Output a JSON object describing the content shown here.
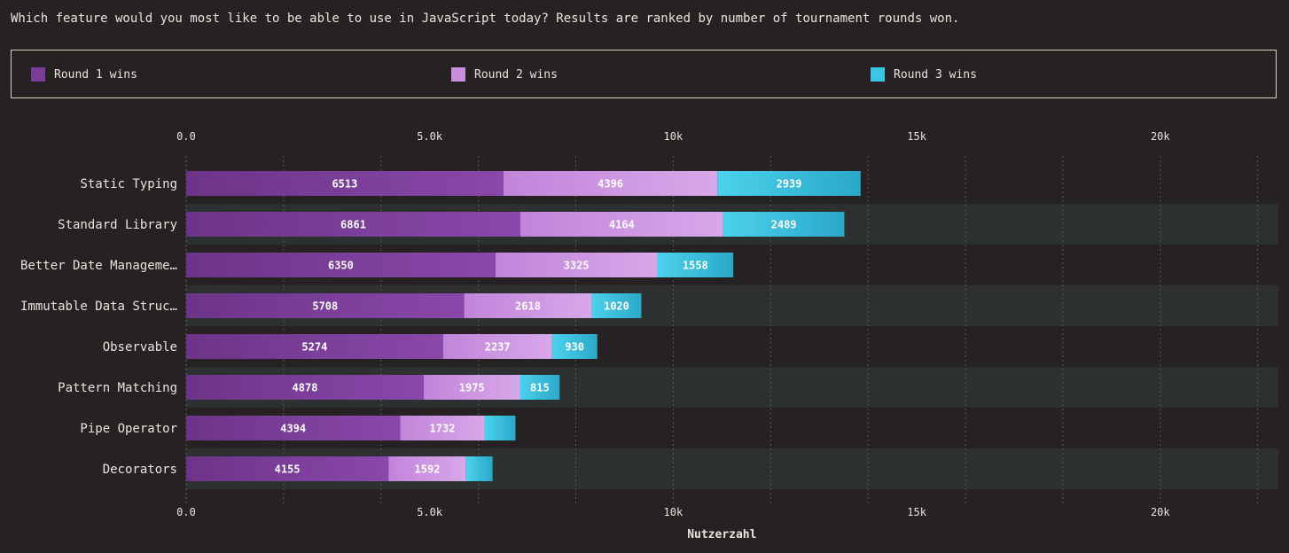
{
  "question": "Which feature would you most like to be able to use in JavaScript today? Results are ranked by number of tournament rounds won.",
  "chart_data": {
    "type": "bar",
    "orientation": "horizontal",
    "stacked": true,
    "categories": [
      "Static Typing",
      "Standard Library",
      "Better Date Manageme…",
      "Immutable Data Struc…",
      "Observable",
      "Pattern Matching",
      "Pipe Operator",
      "Decorators"
    ],
    "series": [
      {
        "name": "Round 1 wins",
        "color": "#7a3d98",
        "values": [
          6513,
          6861,
          6350,
          5708,
          5274,
          4878,
          4394,
          4155
        ],
        "labels": [
          "6513",
          "6861",
          "6350",
          "5708",
          "5274",
          "4878",
          "4394",
          "4155"
        ]
      },
      {
        "name": "Round 2 wins",
        "color": "#c98fdd",
        "values": [
          4396,
          4164,
          3325,
          2618,
          2237,
          1975,
          1732,
          1592
        ],
        "labels": [
          "4396",
          "4164",
          "3325",
          "2618",
          "2237",
          "1975",
          "1732",
          "1592"
        ]
      },
      {
        "name": "Round 3 wins",
        "color": "#3cc6e3",
        "values": [
          2939,
          2489,
          1558,
          1020,
          930,
          815,
          636,
          544
        ],
        "labels": [
          "2939",
          "2489",
          "1558",
          "1020",
          "930",
          "815",
          "",
          ""
        ]
      }
    ],
    "xlabel": "Nutzerzahl",
    "xlim": [
      0,
      22500
    ],
    "xticks": [
      0,
      5000,
      10000,
      15000,
      20000
    ],
    "xtick_labels": [
      "0.0",
      "5.0k",
      "10k",
      "15k",
      "20k"
    ],
    "grid": true,
    "legend": "top"
  }
}
